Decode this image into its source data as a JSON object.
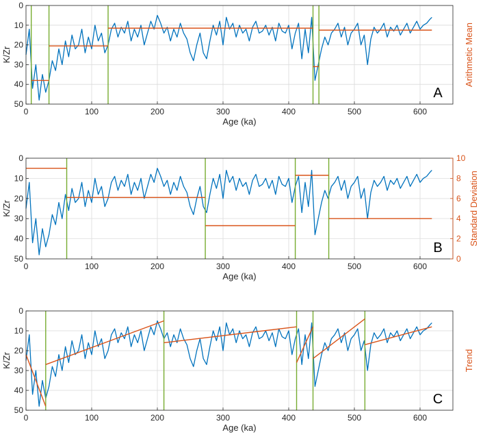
{
  "chart_data": [
    {
      "type": "line",
      "panel_label": "A",
      "xlabel": "Age (ka)",
      "ylabel": "K/Zr",
      "right_ylabel": "Arithmetic Mean",
      "xlim": [
        0,
        650
      ],
      "ylim": [
        0,
        50
      ],
      "y_reversed": true,
      "x_ticks": [
        0,
        100,
        200,
        300,
        400,
        500,
        600
      ],
      "y_ticks": [
        0,
        10,
        20,
        30,
        40,
        50
      ],
      "grid": true,
      "colors": {
        "signal": "#0072bd",
        "fit": "#d95319",
        "breaks": "#77ac30"
      },
      "breakpoints": [
        8,
        35,
        125,
        437,
        446
      ],
      "segments": [
        {
          "x": [
            8,
            35
          ],
          "y": [
            38,
            38
          ]
        },
        {
          "x": [
            35,
            125
          ],
          "y": [
            20.5,
            20.5
          ]
        },
        {
          "x": [
            125,
            437
          ],
          "y": [
            11.5,
            11.5
          ]
        },
        {
          "x": [
            437,
            446
          ],
          "y": [
            31,
            31
          ]
        },
        {
          "x": [
            446,
            618
          ],
          "y": [
            12.5,
            12.5
          ]
        }
      ]
    },
    {
      "type": "line",
      "panel_label": "B",
      "xlabel": "Age (ka)",
      "ylabel": "K/Zr",
      "right_ylabel": "Standard Deviation",
      "xlim": [
        0,
        650
      ],
      "ylim": [
        0,
        50
      ],
      "right_ylim": [
        0,
        10
      ],
      "y_reversed": true,
      "x_ticks": [
        0,
        100,
        200,
        300,
        400,
        500,
        600
      ],
      "y_ticks": [
        0,
        10,
        20,
        30,
        40,
        50
      ],
      "right_ticks": [
        0,
        2,
        4,
        6,
        8,
        10
      ],
      "grid": true,
      "colors": {
        "signal": "#0072bd",
        "fit": "#d95319",
        "breaks": "#77ac30"
      },
      "breakpoints": [
        62,
        273,
        410,
        461
      ],
      "segments": [
        {
          "x": [
            0,
            62
          ],
          "y": [
            9,
            9
          ]
        },
        {
          "x": [
            62,
            273
          ],
          "y": [
            6.1,
            6.1
          ]
        },
        {
          "x": [
            273,
            410
          ],
          "y": [
            3.3,
            3.3
          ]
        },
        {
          "x": [
            410,
            461
          ],
          "y": [
            8.3,
            8.3
          ]
        },
        {
          "x": [
            461,
            618
          ],
          "y": [
            4,
            4
          ]
        }
      ]
    },
    {
      "type": "line",
      "panel_label": "C",
      "xlabel": "Age (ka)",
      "ylabel": "K/Zr",
      "right_ylabel": "Trend",
      "xlim": [
        0,
        650
      ],
      "ylim": [
        0,
        50
      ],
      "y_reversed": true,
      "x_ticks": [
        0,
        100,
        200,
        300,
        400,
        500,
        600
      ],
      "y_ticks": [
        0,
        10,
        20,
        30,
        40,
        50
      ],
      "grid": true,
      "colors": {
        "signal": "#0072bd",
        "fit": "#d95319",
        "breaks": "#77ac30"
      },
      "breakpoints": [
        30,
        210,
        412,
        437,
        516
      ],
      "segments": [
        {
          "x": [
            0,
            30
          ],
          "y": [
            22,
            48
          ]
        },
        {
          "x": [
            30,
            210
          ],
          "y": [
            27,
            5
          ]
        },
        {
          "x": [
            210,
            412
          ],
          "y": [
            16,
            8
          ]
        },
        {
          "x": [
            412,
            437
          ],
          "y": [
            26,
            8
          ]
        },
        {
          "x": [
            437,
            516
          ],
          "y": [
            24,
            4
          ]
        },
        {
          "x": [
            516,
            618
          ],
          "y": [
            17,
            8
          ]
        }
      ]
    }
  ],
  "signal": {
    "x": [
      0,
      5,
      10,
      15,
      20,
      25,
      30,
      35,
      40,
      45,
      50,
      55,
      60,
      65,
      70,
      75,
      80,
      85,
      90,
      95,
      100,
      105,
      110,
      115,
      120,
      125,
      130,
      135,
      140,
      145,
      150,
      155,
      160,
      165,
      170,
      175,
      180,
      185,
      190,
      195,
      200,
      205,
      210,
      215,
      220,
      225,
      230,
      235,
      240,
      245,
      250,
      255,
      260,
      265,
      270,
      275,
      280,
      285,
      290,
      295,
      300,
      305,
      310,
      315,
      320,
      325,
      330,
      335,
      340,
      345,
      350,
      355,
      360,
      365,
      370,
      375,
      380,
      385,
      390,
      395,
      400,
      405,
      410,
      415,
      420,
      425,
      430,
      435,
      440,
      445,
      450,
      455,
      460,
      465,
      470,
      475,
      480,
      485,
      490,
      495,
      500,
      505,
      510,
      515,
      520,
      525,
      530,
      535,
      540,
      545,
      550,
      555,
      560,
      565,
      570,
      575,
      580,
      585,
      590,
      595,
      600,
      605,
      610,
      615,
      618
    ],
    "y": [
      25,
      12,
      42,
      30,
      48,
      35,
      44,
      38,
      28,
      33,
      22,
      30,
      18,
      26,
      15,
      22,
      20,
      12,
      24,
      16,
      22,
      10,
      18,
      14,
      24,
      20,
      12,
      9,
      16,
      11,
      14,
      8,
      18,
      12,
      16,
      10,
      20,
      14,
      8,
      12,
      5,
      9,
      14,
      11,
      18,
      12,
      16,
      9,
      14,
      17,
      24,
      28,
      20,
      14,
      24,
      27,
      18,
      10,
      15,
      8,
      20,
      6,
      12,
      9,
      16,
      10,
      14,
      12,
      18,
      11,
      8,
      14,
      13,
      10,
      15,
      11,
      18,
      9,
      13,
      14,
      10,
      22,
      14,
      9,
      27,
      12,
      24,
      6,
      38,
      30,
      22,
      16,
      20,
      14,
      12,
      9,
      16,
      11,
      20,
      14,
      12,
      9,
      20,
      15,
      30,
      17,
      11,
      14,
      12,
      9,
      16,
      11,
      13,
      10,
      15,
      12,
      9,
      14,
      11,
      8,
      12,
      10,
      9,
      7,
      6
    ]
  }
}
